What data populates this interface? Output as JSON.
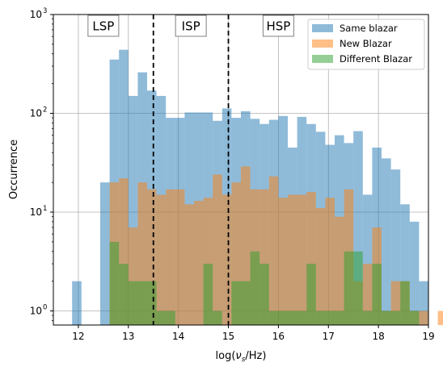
{
  "chart_data": {
    "type": "bar",
    "xlabel": "log(νs/Hz)",
    "xlabel_parts": {
      "main": "log(",
      "var": "ν",
      "sub": "s",
      "tail": "/Hz)"
    },
    "ylabel": "Occurrence",
    "xlim": [
      11.5,
      19.0
    ],
    "ylim": [
      0.72,
      1000
    ],
    "yscale": "log",
    "grid": true,
    "legend_position": "top-right",
    "x_ticks": [
      "12",
      "13",
      "14",
      "15",
      "16",
      "17",
      "18",
      "19"
    ],
    "y_ticks": [
      {
        "base": "10",
        "exp": "0",
        "value": 1
      },
      {
        "base": "10",
        "exp": "1",
        "value": 10
      },
      {
        "base": "10",
        "exp": "2",
        "value": 100
      },
      {
        "base": "10",
        "exp": "3",
        "value": 1000
      }
    ],
    "bin_start": 11.875,
    "bin_width": 0.1875,
    "series": [
      {
        "name": "Same blazar",
        "color": "#1f77b4",
        "values": [
          2,
          0,
          0,
          20,
          350,
          440,
          150,
          260,
          170,
          150,
          90,
          90,
          102,
          102,
          102,
          84,
          112,
          90,
          105,
          88,
          78,
          86,
          94,
          45,
          92,
          78,
          65,
          48,
          60,
          50,
          66,
          15,
          45,
          35,
          27,
          12,
          8,
          2,
          0,
          0
        ]
      },
      {
        "name": "New Blazar",
        "color": "#ff7f0e",
        "values": [
          0,
          0,
          0,
          0,
          20,
          22,
          7,
          20,
          17,
          15,
          17,
          17,
          12,
          13,
          14,
          24,
          15,
          20,
          29,
          17,
          17,
          23,
          14,
          15,
          15,
          16,
          11,
          14,
          9,
          17,
          2,
          3,
          7,
          1,
          2,
          2,
          1,
          1,
          0,
          1
        ]
      },
      {
        "name": "Different Blazar",
        "color": "#2ca02c",
        "values": [
          0,
          0,
          0,
          0,
          5,
          3,
          2,
          2,
          2,
          1,
          1,
          0,
          0,
          0,
          3,
          1,
          0,
          2,
          2,
          4,
          3,
          1,
          1,
          1,
          1,
          3,
          1,
          1,
          1,
          4,
          4,
          1,
          3,
          1,
          1,
          2,
          1,
          0,
          0,
          0
        ]
      }
    ],
    "vlines": [
      13.5,
      15.0
    ],
    "region_labels": [
      {
        "text": "LSP",
        "x": 12.5
      },
      {
        "text": "ISP",
        "x": 14.25
      },
      {
        "text": "HSP",
        "x": 16.0
      }
    ]
  }
}
